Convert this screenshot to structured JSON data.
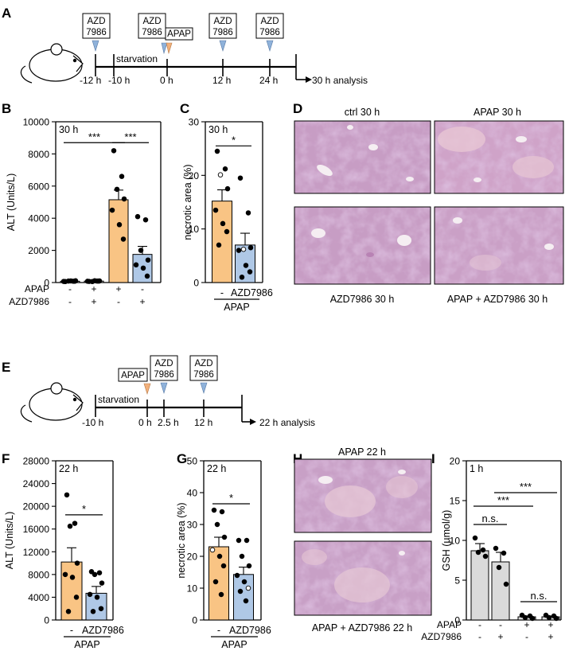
{
  "panels": {
    "A": "A",
    "B": "B",
    "C": "C",
    "D": "D",
    "E": "E",
    "F": "F",
    "G": "G",
    "H": "H",
    "I": "I"
  },
  "timeline_a": {
    "boxes": [
      {
        "lines": [
          "AZD",
          "7986"
        ]
      },
      {
        "lines": [
          "AZD",
          "7986"
        ]
      },
      {
        "lines": [
          "APAP"
        ]
      },
      {
        "lines": [
          "AZD",
          "7986"
        ]
      },
      {
        "lines": [
          "AZD",
          "7986"
        ]
      }
    ],
    "ticks": [
      "-12 h",
      "-10 h",
      "0 h",
      "12 h",
      "24 h"
    ],
    "starvation": "starvation",
    "analysis": "30 h analysis"
  },
  "timeline_e": {
    "boxes": [
      {
        "lines": [
          "APAP"
        ]
      },
      {
        "lines": [
          "AZD",
          "7986"
        ]
      },
      {
        "lines": [
          "AZD",
          "7986"
        ]
      }
    ],
    "ticks": [
      "-10 h",
      "0 h",
      "2.5 h",
      "12 h"
    ],
    "starvation": "starvation",
    "analysis": "22 h analysis"
  },
  "colors": {
    "apap": "#F9C484",
    "azd": "#AFC8E6",
    "ctrl": "#DADADA",
    "tissue": "#C59AC2",
    "tissue_light": "#E3C3D4"
  },
  "micrographs_d": [
    "ctrl 30 h",
    "APAP 30 h",
    "AZD7986 30 h",
    "APAP + AZD7986 30 h"
  ],
  "micrographs_h": [
    "APAP 22 h",
    "APAP + AZD7986 22 h"
  ],
  "chart_data": [
    {
      "panel": "B",
      "type": "bar",
      "inset": "30 h",
      "ylabel": "ALT (Units/L)",
      "ylim": [
        0,
        10000
      ],
      "yticks": [
        "0",
        "2000",
        "4000",
        "6000",
        "8000",
        "10000"
      ],
      "row_labels": [
        "APAP",
        "AZD7986"
      ],
      "conditions": [
        [
          "-",
          "+",
          "+",
          "-"
        ],
        [
          "-",
          "+",
          "-",
          "+"
        ]
      ],
      "values": [
        80,
        90,
        5150,
        1750
      ],
      "sem": [
        0,
        0,
        600,
        500
      ],
      "points": [
        [
          60,
          80,
          90,
          110,
          70,
          100,
          80
        ],
        [
          70,
          90,
          60,
          100,
          80,
          110,
          90
        ],
        [
          8200,
          6600,
          5800,
          5200,
          4500,
          3600,
          2700
        ],
        [
          4100,
          3900,
          2000,
          1400,
          1100,
          900,
          400
        ]
      ],
      "significance": [
        "***",
        "***"
      ]
    },
    {
      "panel": "C",
      "type": "bar",
      "inset": "30 h",
      "ylabel": "necrotic area (%)",
      "ylim": [
        0,
        30
      ],
      "yticks": [
        "0",
        "10",
        "20",
        "30"
      ],
      "x_labels": [
        "-",
        "AZD7986"
      ],
      "group_label": "APAP",
      "values": [
        15.2,
        7.0
      ],
      "sem": [
        2.1,
        2.2
      ],
      "points": [
        [
          24.5,
          21.2,
          20.1,
          17.5,
          13.5,
          11.0,
          9.5,
          7.0
        ],
        [
          19.5,
          13.0,
          6.2,
          6.5,
          6.0,
          3.2,
          2.0,
          1.0
        ]
      ],
      "significance": [
        "*"
      ]
    },
    {
      "panel": "F",
      "type": "bar",
      "inset": "22 h",
      "ylabel": "ALT (Units/L)",
      "ylim": [
        0,
        28000
      ],
      "yticks": [
        "0",
        "4000",
        "8000",
        "12000",
        "16000",
        "20000",
        "24000",
        "28000"
      ],
      "x_labels": [
        "-",
        "AZD7986"
      ],
      "group_label": "APAP",
      "values": [
        10200,
        4700
      ],
      "sem": [
        2500,
        1200
      ],
      "points": [
        [
          22000,
          17000,
          16500,
          10000,
          8000,
          7500,
          4000,
          1500
        ],
        [
          8500,
          8300,
          8000,
          6500,
          4500,
          4000,
          2000,
          1500
        ]
      ],
      "significance": [
        "*"
      ]
    },
    {
      "panel": "G",
      "type": "bar",
      "inset": "22 h",
      "ylabel": "necrotic area (%)",
      "ylim": [
        0,
        50
      ],
      "yticks": [
        "0",
        "10",
        "20",
        "30",
        "40",
        "50"
      ],
      "x_labels": [
        "-",
        "AZD7986"
      ],
      "group_label": "APAP",
      "values": [
        23,
        14.3
      ],
      "sem": [
        3.0,
        2.3
      ],
      "points": [
        [
          34.5,
          34,
          30,
          26,
          22,
          20,
          17,
          12,
          8
        ],
        [
          25,
          25,
          20,
          17,
          14,
          12,
          10,
          9,
          6
        ]
      ],
      "significance": [
        "*"
      ]
    },
    {
      "panel": "I",
      "type": "bar",
      "inset": "1 h",
      "ylabel": "GSH (µmol/g)",
      "ylim": [
        0,
        20
      ],
      "yticks": [
        "0",
        "5",
        "10",
        "15",
        "20"
      ],
      "row_labels": [
        "APAP",
        "AZD7986"
      ],
      "conditions": [
        [
          "-",
          "-",
          "+",
          "+"
        ],
        [
          "-",
          "+",
          "-",
          "+"
        ]
      ],
      "values": [
        8.7,
        7.3,
        0.4,
        0.4
      ],
      "sem": [
        0.9,
        1.2,
        0.1,
        0.1
      ],
      "points": [
        [
          10.3,
          8.8,
          8.5,
          8.0
        ],
        [
          9.0,
          8.4,
          6.6,
          4.5
        ],
        [
          0.6,
          0.5,
          0.3,
          0.2
        ],
        [
          0.6,
          0.5,
          0.3,
          0.2
        ]
      ],
      "significance": [
        "n.s.",
        "***",
        "***",
        "n.s."
      ]
    }
  ]
}
